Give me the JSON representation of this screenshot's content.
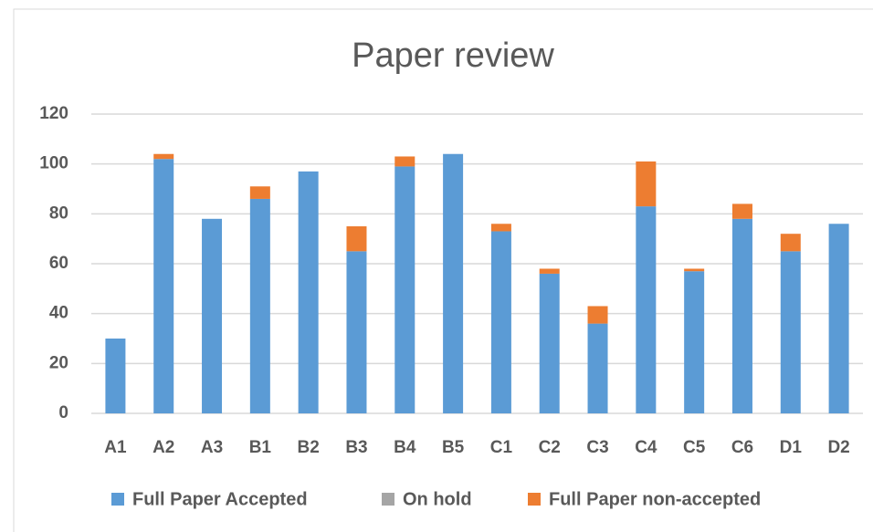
{
  "chart_data": {
    "type": "stacked_bar",
    "title": "Paper review",
    "categories": [
      "A1",
      "A2",
      "A3",
      "B1",
      "B2",
      "B3",
      "B4",
      "B5",
      "C1",
      "C2",
      "C3",
      "C4",
      "C5",
      "C6",
      "D1",
      "D2"
    ],
    "series": [
      {
        "name": "Full Paper Accepted",
        "color": "#5b9bd5",
        "values": [
          30,
          102,
          78,
          86,
          97,
          65,
          99,
          104,
          73,
          56,
          36,
          83,
          57,
          78,
          65,
          76
        ]
      },
      {
        "name": "On hold",
        "color": "#a5a5a5",
        "values": [
          0,
          0,
          0,
          0,
          0,
          0,
          0,
          0,
          0,
          0,
          0,
          0,
          0,
          0,
          0,
          0
        ]
      },
      {
        "name": "Full Paper non-accepted",
        "color": "#ed7d31",
        "values": [
          0,
          2,
          0,
          5,
          0,
          10,
          4,
          0,
          3,
          2,
          7,
          18,
          1,
          6,
          7,
          0
        ]
      }
    ],
    "ylim": [
      0,
      120
    ],
    "yticks": [
      0,
      20,
      40,
      60,
      80,
      100,
      120
    ],
    "grid": true,
    "legend": "bottom"
  }
}
